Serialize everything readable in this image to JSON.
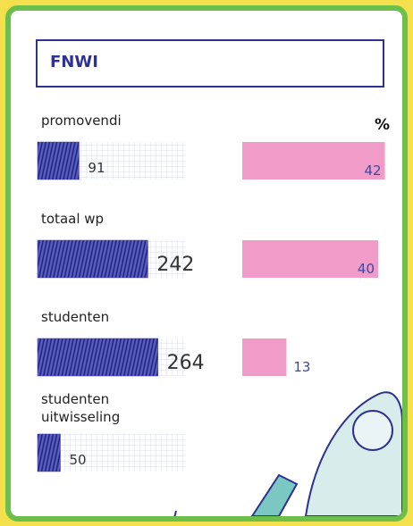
{
  "chart_data": {
    "type": "bar",
    "title": "FNWI",
    "percent_header": "%",
    "categories": [
      "promovendi",
      "totaal wp",
      "studenten",
      "studenten uitwisseling"
    ],
    "values": [
      91,
      242,
      264,
      50
    ],
    "color": "#3a3da6",
    "percent_values": [
      42,
      40,
      13,
      null
    ],
    "percent_color": "#f19bc9"
  }
}
